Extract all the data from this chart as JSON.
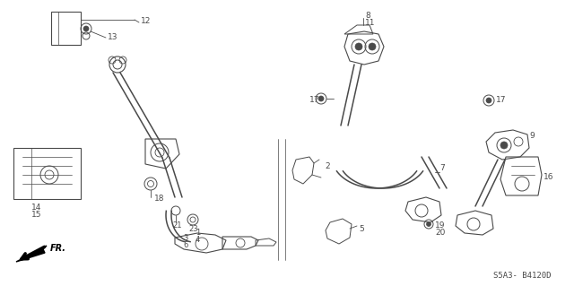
{
  "bg_color": "#ffffff",
  "fig_width": 6.4,
  "fig_height": 3.19,
  "dpi": 100,
  "diagram_code": "S5A3- B4120D",
  "fr_label": "FR.",
  "line_color": "#4a4a4a",
  "text_color": "#4a4a4a",
  "label_fontsize": 6.5,
  "code_fontsize": 6.5
}
